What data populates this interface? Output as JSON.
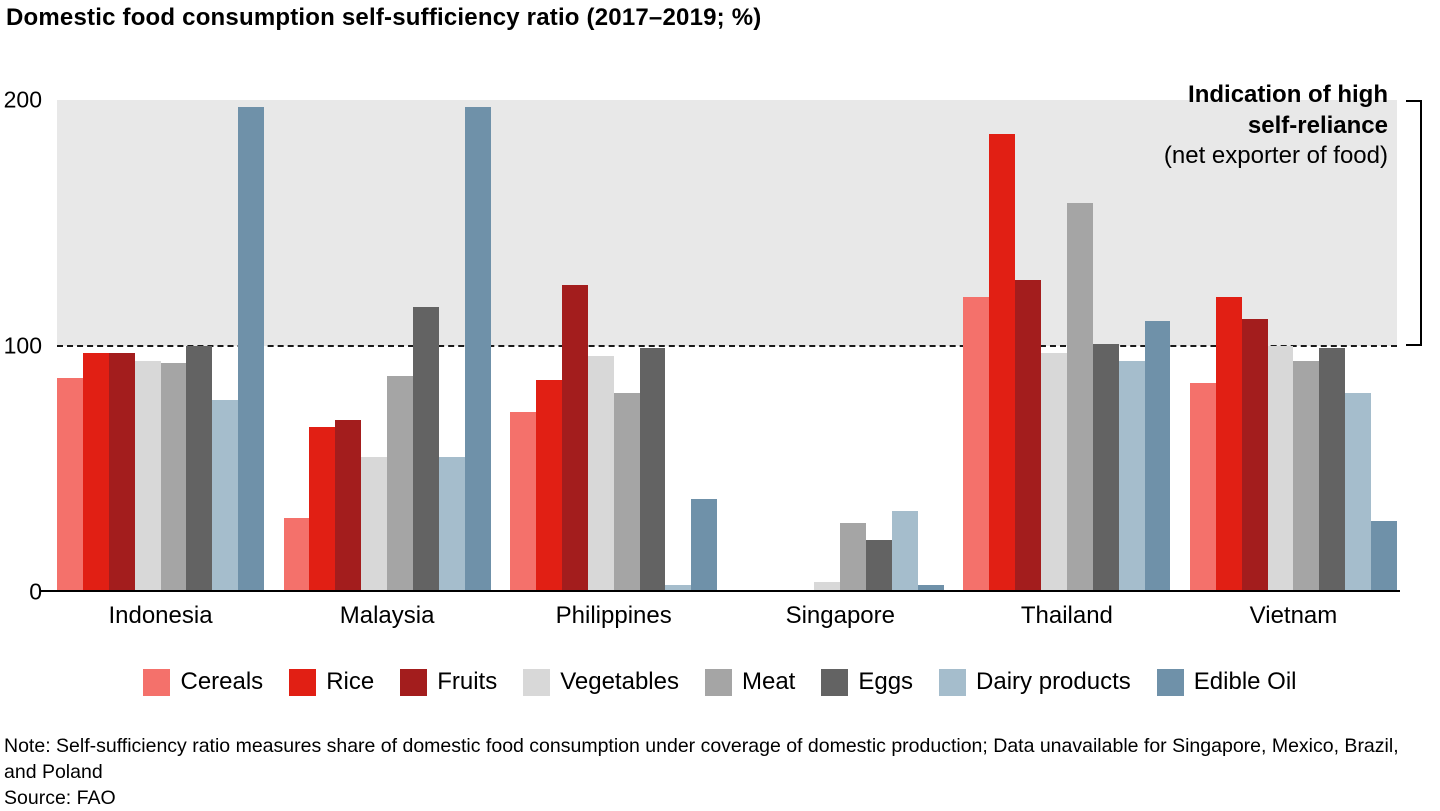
{
  "title": "Domestic food consumption self-sufficiency ratio (2017–2019; %)",
  "annotation": {
    "line1": "Indication of high",
    "line2": "self-reliance",
    "line3": "(net exporter of food)"
  },
  "note": "Note: Self-sufficiency ratio measures share of domestic food consumption under coverage of domestic production; Data unavailable for Singapore, Mexico, Brazil, and Poland",
  "source": "Source: FAO",
  "chart_data": {
    "type": "bar",
    "title": "Domestic food consumption self-sufficiency ratio (2017–2019; %)",
    "categories": [
      "Indonesia",
      "Malaysia",
      "Philippines",
      "Singapore",
      "Thailand",
      "Vietnam"
    ],
    "series": [
      {
        "name": "Cereals",
        "color": "#f4716b",
        "values": [
          87,
          30,
          73,
          0,
          120,
          85
        ]
      },
      {
        "name": "Rice",
        "color": "#e11f14",
        "values": [
          97,
          67,
          86,
          0,
          186,
          120
        ]
      },
      {
        "name": "Fruits",
        "color": "#a31d1d",
        "values": [
          97,
          70,
          125,
          0,
          127,
          111
        ]
      },
      {
        "name": "Vegetables",
        "color": "#d8d8d8",
        "values": [
          94,
          55,
          96,
          4,
          97,
          100
        ]
      },
      {
        "name": "Meat",
        "color": "#a5a5a5",
        "values": [
          93,
          88,
          81,
          28,
          158,
          94
        ]
      },
      {
        "name": "Eggs",
        "color": "#636363",
        "values": [
          100,
          116,
          99,
          21,
          101,
          99
        ]
      },
      {
        "name": "Dairy products",
        "color": "#a5bdcc",
        "values": [
          78,
          55,
          3,
          33,
          94,
          81
        ]
      },
      {
        "name": "Edible Oil",
        "color": "#6f91a9",
        "values": [
          197,
          197,
          38,
          3,
          110,
          29
        ]
      }
    ],
    "xlabel": "",
    "ylabel": "",
    "ylim": [
      0,
      200
    ],
    "yticks": [
      0,
      100,
      200
    ],
    "threshold": 100,
    "shaded_region": [
      100,
      200
    ],
    "grid": false,
    "legend_position": "bottom"
  }
}
